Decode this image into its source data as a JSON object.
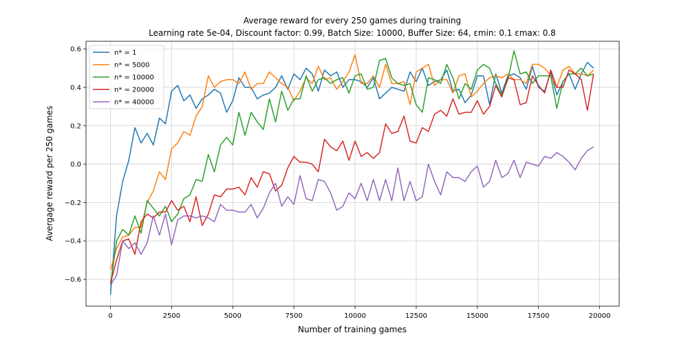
{
  "chart_data": {
    "type": "line",
    "title": "Average reward for every 250 games during training",
    "subtitle": "Learning rate 5e-04, Discount factor: 0.99, Batch Size: 10000, Buffer Size: 64, εmin: 0.1 εmax: 0.8",
    "xlabel": "Number of training games",
    "ylabel": "Avergage reward per 250 games",
    "xlim": [
      -1000,
      20800
    ],
    "ylim": [
      -0.74,
      0.64
    ],
    "xticks": [
      0,
      2500,
      5000,
      7500,
      10000,
      12500,
      15000,
      17500,
      20000
    ],
    "xtick_labels": [
      "0",
      "2500",
      "5000",
      "7500",
      "10000",
      "12500",
      "15000",
      "17500",
      "20000"
    ],
    "yticks": [
      -0.6,
      -0.4,
      -0.2,
      0.0,
      0.2,
      0.4,
      0.6
    ],
    "ytick_labels": [
      "−0.6",
      "−0.4",
      "−0.2",
      "0.0",
      "0.2",
      "0.4",
      "0.6"
    ],
    "grid": true,
    "legend_position": "top-left",
    "x": [
      0,
      250,
      500,
      750,
      1000,
      1250,
      1500,
      1750,
      2000,
      2250,
      2500,
      2750,
      3000,
      3250,
      3500,
      3750,
      4000,
      4250,
      4500,
      4750,
      5000,
      5250,
      5500,
      5750,
      6000,
      6250,
      6500,
      6750,
      7000,
      7250,
      7500,
      7750,
      8000,
      8250,
      8500,
      8750,
      9000,
      9250,
      9500,
      9750,
      10000,
      10250,
      10500,
      10750,
      11000,
      11250,
      11500,
      11750,
      12000,
      12250,
      12500,
      12750,
      13000,
      13250,
      13500,
      13750,
      14000,
      14250,
      14500,
      14750,
      15000,
      15250,
      15500,
      15750,
      16000,
      16250,
      16500,
      16750,
      17000,
      17250,
      17500,
      17750,
      18000,
      18250,
      18500,
      18750,
      19000,
      19250,
      19500,
      19750
    ],
    "series": [
      {
        "name": "n* = 1",
        "color": "#1f77b4",
        "values": [
          -0.68,
          -0.27,
          -0.09,
          0.02,
          0.19,
          0.11,
          0.16,
          0.1,
          0.24,
          0.21,
          0.38,
          0.41,
          0.33,
          0.36,
          0.29,
          0.34,
          0.36,
          0.39,
          0.37,
          0.27,
          0.33,
          0.45,
          0.4,
          0.4,
          0.34,
          0.36,
          0.37,
          0.4,
          0.46,
          0.39,
          0.47,
          0.44,
          0.5,
          0.47,
          0.38,
          0.49,
          0.46,
          0.48,
          0.4,
          0.44,
          0.44,
          0.43,
          0.4,
          0.45,
          0.34,
          0.37,
          0.4,
          0.39,
          0.38,
          0.48,
          0.43,
          0.5,
          0.41,
          0.43,
          0.44,
          0.49,
          0.38,
          0.39,
          0.32,
          0.36,
          0.46,
          0.46,
          0.31,
          0.47,
          0.37,
          0.46,
          0.47,
          0.45,
          0.39,
          0.51,
          0.4,
          0.38,
          0.48,
          0.36,
          0.43,
          0.47,
          0.39,
          0.47,
          0.53,
          0.5
        ]
      },
      {
        "name": "n* = 5000",
        "color": "#ff7f0e",
        "values": [
          -0.55,
          -0.44,
          -0.38,
          -0.37,
          -0.33,
          -0.33,
          -0.2,
          -0.14,
          -0.04,
          -0.08,
          0.08,
          0.11,
          0.17,
          0.15,
          0.25,
          0.3,
          0.46,
          0.4,
          0.43,
          0.44,
          0.44,
          0.42,
          0.48,
          0.39,
          0.42,
          0.42,
          0.48,
          0.45,
          0.42,
          0.4,
          0.33,
          0.38,
          0.45,
          0.42,
          0.51,
          0.44,
          0.45,
          0.39,
          0.43,
          0.48,
          0.57,
          0.42,
          0.42,
          0.46,
          0.4,
          0.52,
          0.42,
          0.42,
          0.43,
          0.31,
          0.48,
          0.5,
          0.52,
          0.41,
          0.44,
          0.44,
          0.37,
          0.46,
          0.47,
          0.35,
          0.38,
          0.42,
          0.45,
          0.46,
          0.45,
          0.47,
          0.44,
          0.44,
          0.42,
          0.52,
          0.52,
          0.5,
          0.46,
          0.4,
          0.49,
          0.51,
          0.47,
          0.47,
          0.46,
          0.49
        ]
      },
      {
        "name": "n* = 10000",
        "color": "#2ca02c",
        "values": [
          -0.63,
          -0.4,
          -0.34,
          -0.37,
          -0.27,
          -0.36,
          -0.19,
          -0.23,
          -0.27,
          -0.22,
          -0.3,
          -0.26,
          -0.18,
          -0.16,
          -0.08,
          -0.09,
          0.05,
          -0.04,
          0.1,
          0.14,
          0.1,
          0.27,
          0.15,
          0.27,
          0.22,
          0.18,
          0.34,
          0.22,
          0.38,
          0.28,
          0.34,
          0.34,
          0.46,
          0.38,
          0.44,
          0.45,
          0.42,
          0.44,
          0.45,
          0.37,
          0.46,
          0.47,
          0.39,
          0.4,
          0.54,
          0.55,
          0.45,
          0.42,
          0.41,
          0.42,
          0.31,
          0.27,
          0.45,
          0.44,
          0.42,
          0.52,
          0.45,
          0.34,
          0.42,
          0.39,
          0.49,
          0.52,
          0.5,
          0.42,
          0.36,
          0.44,
          0.59,
          0.47,
          0.48,
          0.42,
          0.46,
          0.46,
          0.46,
          0.29,
          0.43,
          0.47,
          0.47,
          0.5,
          0.46,
          0.47
        ]
      },
      {
        "name": "n* = 20000",
        "color": "#d62728",
        "values": [
          -0.62,
          -0.5,
          -0.4,
          -0.39,
          -0.47,
          -0.3,
          -0.26,
          -0.28,
          -0.25,
          -0.25,
          -0.19,
          -0.24,
          -0.22,
          -0.3,
          -0.17,
          -0.32,
          -0.26,
          -0.16,
          -0.17,
          -0.13,
          -0.13,
          -0.12,
          -0.16,
          -0.07,
          -0.12,
          -0.04,
          -0.05,
          -0.14,
          -0.11,
          -0.02,
          0.04,
          0.01,
          0.01,
          0.0,
          -0.04,
          0.13,
          0.09,
          0.07,
          0.12,
          0.02,
          0.12,
          0.04,
          0.06,
          0.03,
          0.06,
          0.21,
          0.16,
          0.17,
          0.25,
          0.12,
          0.11,
          0.19,
          0.17,
          0.26,
          0.28,
          0.25,
          0.34,
          0.26,
          0.27,
          0.27,
          0.33,
          0.26,
          0.3,
          0.41,
          0.35,
          0.45,
          0.44,
          0.31,
          0.32,
          0.46,
          0.41,
          0.37,
          0.49,
          0.4,
          0.4,
          0.49,
          0.47,
          0.44,
          0.28,
          0.47
        ]
      },
      {
        "name": "n* = 40000",
        "color": "#9467bd",
        "values": [
          -0.63,
          -0.58,
          -0.4,
          -0.44,
          -0.41,
          -0.47,
          -0.41,
          -0.27,
          -0.37,
          -0.26,
          -0.42,
          -0.29,
          -0.27,
          -0.27,
          -0.28,
          -0.27,
          -0.28,
          -0.3,
          -0.21,
          -0.24,
          -0.24,
          -0.25,
          -0.25,
          -0.21,
          -0.28,
          -0.23,
          -0.15,
          -0.1,
          -0.22,
          -0.17,
          -0.21,
          -0.06,
          -0.18,
          -0.19,
          -0.08,
          -0.09,
          -0.15,
          -0.24,
          -0.22,
          -0.15,
          -0.18,
          -0.1,
          -0.19,
          -0.08,
          -0.19,
          -0.08,
          -0.19,
          -0.02,
          -0.19,
          -0.09,
          -0.19,
          -0.17,
          0.0,
          -0.09,
          -0.16,
          -0.04,
          -0.07,
          -0.07,
          -0.09,
          -0.04,
          -0.01,
          -0.12,
          -0.09,
          0.02,
          -0.07,
          -0.05,
          0.02,
          -0.07,
          0.01,
          0.0,
          -0.01,
          0.04,
          0.03,
          0.06,
          0.04,
          0.01,
          -0.03,
          0.03,
          0.07,
          0.09
        ]
      }
    ]
  }
}
